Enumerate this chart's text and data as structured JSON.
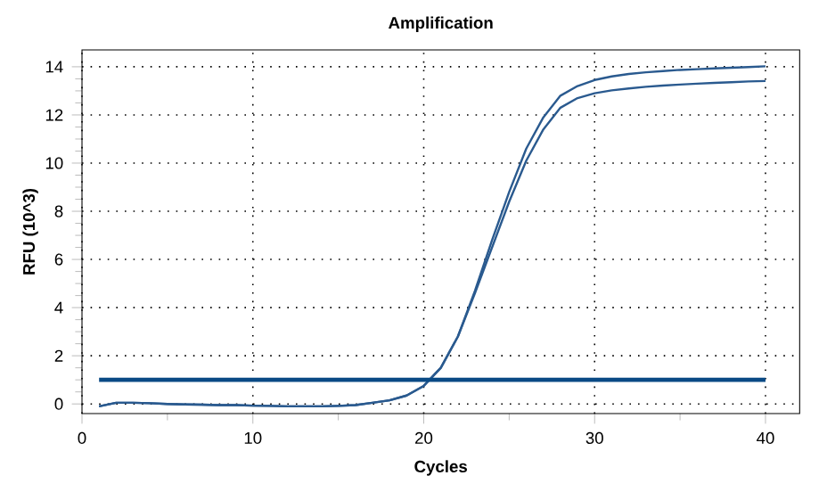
{
  "chart_data": {
    "type": "line",
    "title": "Amplification",
    "xlabel": "Cycles",
    "ylabel": "RFU (10^3)",
    "x": [
      1,
      2,
      3,
      4,
      5,
      6,
      7,
      8,
      9,
      10,
      11,
      12,
      13,
      14,
      15,
      16,
      17,
      18,
      19,
      20,
      21,
      22,
      23,
      24,
      25,
      26,
      27,
      28,
      29,
      30,
      31,
      32,
      33,
      34,
      35,
      36,
      37,
      38,
      39,
      40
    ],
    "series": [
      {
        "color": "#2a5a8f",
        "values": [
          -0.1,
          0.05,
          0.05,
          0.03,
          0,
          -0.02,
          -0.03,
          -0.05,
          -0.05,
          -0.07,
          -0.08,
          -0.1,
          -0.1,
          -0.1,
          -0.08,
          -0.05,
          0.05,
          0.15,
          0.35,
          0.75,
          1.5,
          2.8,
          4.7,
          6.8,
          8.8,
          10.6,
          11.9,
          12.8,
          13.2,
          13.45,
          13.6,
          13.7,
          13.77,
          13.82,
          13.87,
          13.9,
          13.93,
          13.96,
          13.99,
          14.02
        ]
      },
      {
        "color": "#2a5a8f",
        "values": [
          -0.1,
          0.05,
          0.05,
          0.03,
          0,
          -0.02,
          -0.03,
          -0.05,
          -0.05,
          -0.07,
          -0.08,
          -0.1,
          -0.1,
          -0.1,
          -0.08,
          -0.05,
          0.05,
          0.15,
          0.35,
          0.75,
          1.5,
          2.8,
          4.6,
          6.5,
          8.4,
          10.1,
          11.4,
          12.3,
          12.7,
          12.9,
          13.02,
          13.1,
          13.17,
          13.22,
          13.26,
          13.3,
          13.33,
          13.36,
          13.39,
          13.41
        ]
      }
    ],
    "ref_lines": [
      {
        "axis": "y",
        "value": 1,
        "color": "#0a4a85",
        "line_style": "solid"
      }
    ],
    "xlim": [
      0,
      42
    ],
    "ylim": [
      -0.4,
      14.7
    ],
    "xticks": [
      0,
      10,
      20,
      30,
      40
    ],
    "yticks": [
      0,
      2,
      4,
      6,
      8,
      10,
      12,
      14
    ],
    "grid": true,
    "marker": "none",
    "line_style": "solid"
  }
}
